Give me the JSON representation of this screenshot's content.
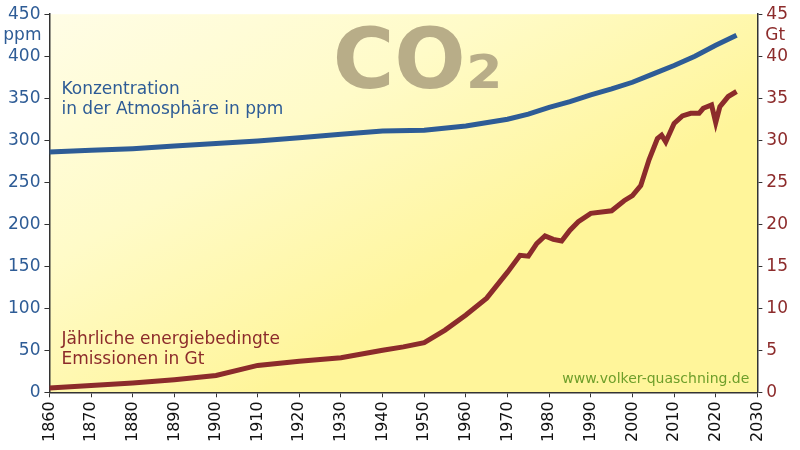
{
  "chart_data": {
    "type": "line",
    "title": "CO₂",
    "ylabel": "ppm",
    "y2label": "Gt",
    "annotations": [
      "www.volker-quaschning.de"
    ],
    "xlim": [
      1860,
      2030
    ],
    "xticks": [
      1860,
      1870,
      1880,
      1890,
      1900,
      1910,
      1920,
      1930,
      1940,
      1950,
      1960,
      1970,
      1980,
      1990,
      2000,
      2010,
      2020,
      2030
    ],
    "ylim": [
      0,
      450
    ],
    "yticks": [
      0,
      50,
      100,
      150,
      200,
      250,
      300,
      350,
      400,
      450
    ],
    "y2lim": [
      0,
      45
    ],
    "y2ticks": [
      0,
      5,
      10,
      15,
      20,
      25,
      30,
      35,
      40,
      45
    ],
    "grid": false,
    "series": [
      {
        "name": "Konzentration\nin der Atmosphäre in ppm",
        "color": "#2e5c96",
        "marker": "none",
        "x": [
          1860,
          1870,
          1880,
          1890,
          1900,
          1910,
          1920,
          1930,
          1940,
          1950,
          1960,
          1970,
          1975,
          1980,
          1985,
          1990,
          1995,
          2000,
          2005,
          2010,
          2015,
          2020,
          2025
        ],
        "values": [
          286,
          288,
          290,
          293,
          296,
          299,
          303,
          307,
          311,
          312,
          317,
          325,
          331,
          339,
          346,
          354,
          361,
          369,
          379,
          389,
          400,
          413,
          425
        ]
      },
      {
        "name": "Jährliche energiebedingte\nEmissionen in Gt",
        "color": "#8c2b2b",
        "marker": "none",
        "axis": "y2",
        "x": [
          1860,
          1870,
          1880,
          1890,
          1900,
          1910,
          1920,
          1930,
          1940,
          1945,
          1950,
          1955,
          1960,
          1965,
          1970,
          1973,
          1975,
          1977,
          1979,
          1981,
          1983,
          1985,
          1987,
          1990,
          1995,
          1998,
          2000,
          2002,
          2004,
          2006,
          2007,
          2008,
          2010,
          2012,
          2014,
          2016,
          2017,
          2019,
          2020,
          2021,
          2023,
          2025
        ],
        "values": [
          0.5,
          0.8,
          1.1,
          1.5,
          2.0,
          3.2,
          3.7,
          4.1,
          5.0,
          5.4,
          5.9,
          7.4,
          9.2,
          11.2,
          14.3,
          16.3,
          16.2,
          17.7,
          18.6,
          18.2,
          18.0,
          19.3,
          20.3,
          21.3,
          21.6,
          22.8,
          23.4,
          24.6,
          27.7,
          30.2,
          30.6,
          29.8,
          32.0,
          32.9,
          33.2,
          33.2,
          33.8,
          34.2,
          32.1,
          34.0,
          35.2,
          35.8
        ]
      }
    ]
  }
}
